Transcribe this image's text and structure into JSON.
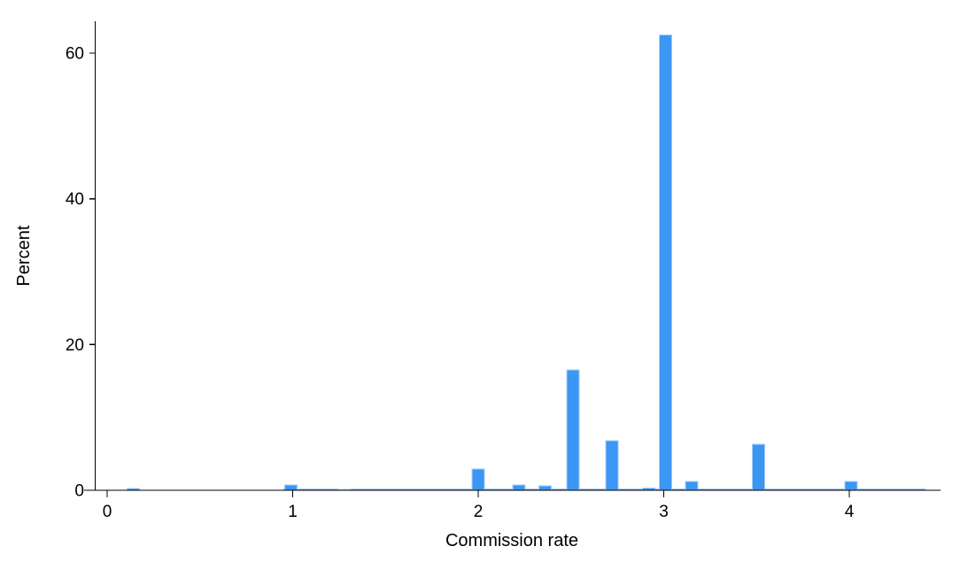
{
  "chart_data": {
    "type": "bar",
    "title": "",
    "xlabel": "Commission rate",
    "ylabel": "Percent",
    "xlim": [
      -0.12,
      4.49
    ],
    "ylim": [
      0,
      64.4
    ],
    "x_ticks": [
      0,
      1,
      2,
      3,
      4
    ],
    "y_ticks": [
      0,
      20,
      40,
      60
    ],
    "grid": false,
    "legend": false,
    "bar_color": "#3B96F4",
    "bar_border_color": "#A7CEF8",
    "baseline_strip_color": "#4E9DF2",
    "axis_color": "#000000",
    "bin_width": 0.072,
    "bins": [
      {
        "x": 0.14,
        "percent": 0.25
      },
      {
        "x": 0.99,
        "percent": 0.7
      },
      {
        "x": 1.28,
        "percent": 0.15
      },
      {
        "x": 1.5,
        "percent": 0.2
      },
      {
        "x": 2.0,
        "percent": 2.9
      },
      {
        "x": 2.22,
        "percent": 0.7
      },
      {
        "x": 2.36,
        "percent": 0.6
      },
      {
        "x": 2.51,
        "percent": 16.5
      },
      {
        "x": 2.72,
        "percent": 6.8
      },
      {
        "x": 2.92,
        "percent": 0.3
      },
      {
        "x": 3.01,
        "percent": 62.5
      },
      {
        "x": 3.15,
        "percent": 1.2
      },
      {
        "x": 3.51,
        "percent": 6.3
      },
      {
        "x": 4.01,
        "percent": 1.2
      }
    ],
    "baseline_strip": {
      "from": 0.95,
      "to": 4.41,
      "percent": 0.18
    }
  }
}
